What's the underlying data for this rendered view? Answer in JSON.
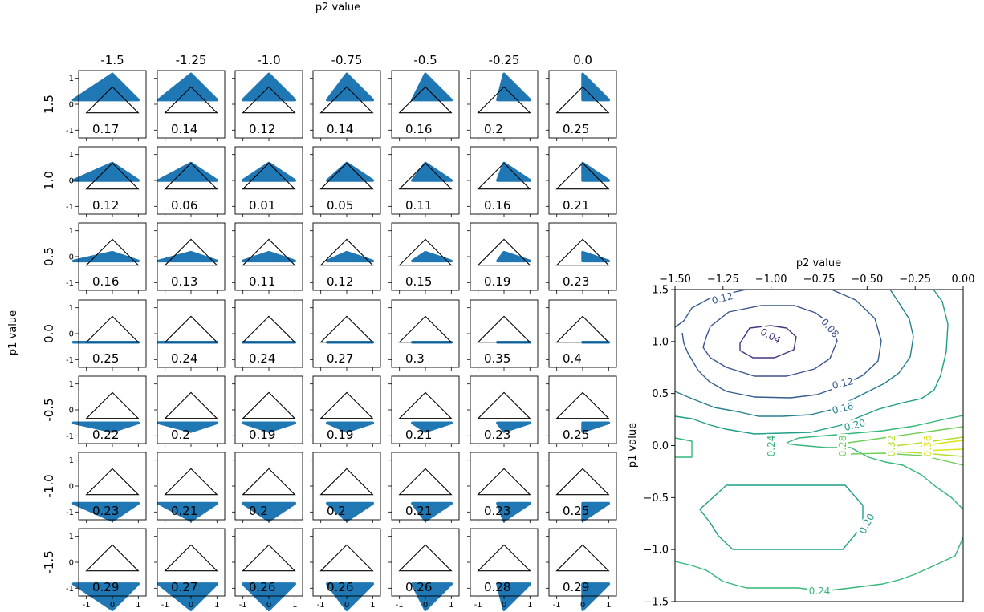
{
  "chart_data": [
    {
      "type": "grid_of_scatter_panels",
      "xlabel_top": "p2 value",
      "ylabel_left": "p1 value",
      "col_labels": [
        "-1.5",
        "-1.25",
        "-1.0",
        "-0.75",
        "-0.5",
        "-0.25",
        "0.0"
      ],
      "row_labels": [
        "1.5",
        "1.0",
        "0.5",
        "0.0",
        "-0.5",
        "-1.0",
        "-1.5"
      ],
      "p2_values": [
        -1.5,
        -1.25,
        -1.0,
        -0.75,
        -0.5,
        -0.25,
        0.0
      ],
      "p1_values": [
        1.5,
        1.0,
        0.5,
        0.0,
        -0.5,
        -1.0,
        -1.5
      ],
      "panel_xticks": [
        "-1",
        "0",
        "1"
      ],
      "panel_yticks": [
        "1",
        "0",
        "-1"
      ],
      "panel_xlim": [
        -1.3,
        1.3
      ],
      "panel_ylim": [
        -1.3,
        1.3
      ],
      "reference_triangle": [
        [
          -1,
          -0.33
        ],
        [
          0,
          0.67
        ],
        [
          1,
          -0.33
        ]
      ],
      "marker_color": "#1f77b4",
      "scores": [
        [
          "0.17",
          "0.14",
          "0.12",
          "0.14",
          "0.16",
          "0.2",
          "0.25"
        ],
        [
          "0.12",
          "0.06",
          "0.01",
          "0.05",
          "0.11",
          "0.16",
          "0.21"
        ],
        [
          "0.16",
          "0.13",
          "0.11",
          "0.12",
          "0.15",
          "0.19",
          "0.23"
        ],
        [
          "0.25",
          "0.24",
          "0.24",
          "0.27",
          "0.3",
          "0.35",
          "0.4"
        ],
        [
          "0.22",
          "0.2",
          "0.19",
          "0.19",
          "0.21",
          "0.23",
          "0.25"
        ],
        [
          "0.23",
          "0.21",
          "0.2",
          "0.2",
          "0.21",
          "0.23",
          "0.25"
        ],
        [
          "0.29",
          "0.27",
          "0.26",
          "0.26",
          "0.26",
          "0.28",
          "0.29"
        ]
      ]
    },
    {
      "type": "contour",
      "xlabel": "p2 value",
      "ylabel": "p1 value",
      "xlim": [
        -1.5,
        0.0
      ],
      "ylim": [
        -1.5,
        1.5
      ],
      "xticks": [
        "−1.50",
        "−1.25",
        "−1.00",
        "−0.75",
        "−0.50",
        "−0.25",
        "0.00"
      ],
      "yticks": [
        "1.5",
        "1.0",
        "0.5",
        "0.0",
        "−0.5",
        "−1.0",
        "−1.5"
      ],
      "levels": [
        {
          "value": 0.04,
          "label": "0.04",
          "color": "#46327e"
        },
        {
          "value": 0.08,
          "label": "0.08",
          "color": "#3b528b"
        },
        {
          "value": 0.12,
          "label": "0.12",
          "color": "#365c8d"
        },
        {
          "value": 0.16,
          "label": "0.16",
          "color": "#277f8e"
        },
        {
          "value": 0.2,
          "label": "0.20",
          "color": "#1f9e89"
        },
        {
          "value": 0.24,
          "label": "0.24",
          "color": "#35b779"
        },
        {
          "value": 0.28,
          "label": "0.28",
          "color": "#6ece58"
        },
        {
          "value": 0.32,
          "label": "0.32",
          "color": "#b5de2b"
        },
        {
          "value": 0.36,
          "label": "0.36",
          "color": "#dde318"
        }
      ]
    }
  ]
}
